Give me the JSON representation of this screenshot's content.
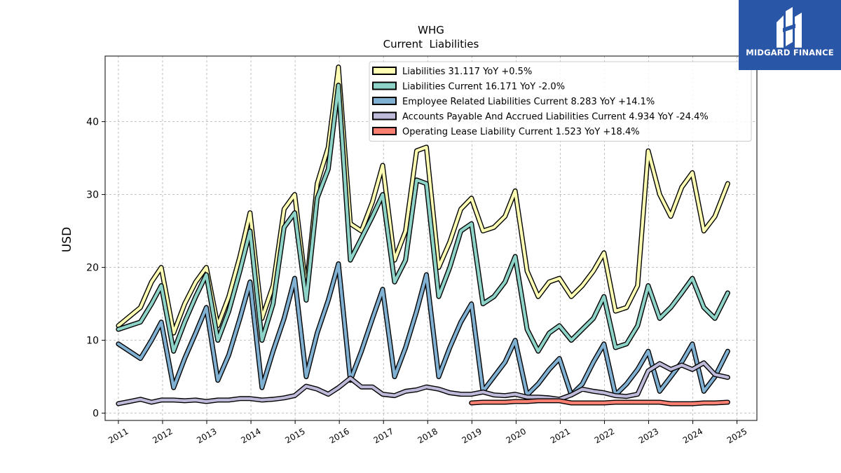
{
  "brand": {
    "name": "MIDGARD FINANCE",
    "bg_color": "#2a56a8",
    "icon": "midgard-logo-icon"
  },
  "chart_data": {
    "type": "line",
    "title": "WHG",
    "subtitle": "Current  Liabilities",
    "ylabel": "USD",
    "xlabel": "",
    "xlim": [
      2010.7,
      2025.45
    ],
    "ylim": [
      -1,
      49
    ],
    "x_ticks": [
      2011,
      2012,
      2013,
      2014,
      2015,
      2016,
      2017,
      2018,
      2019,
      2020,
      2021,
      2022,
      2023,
      2024,
      2025
    ],
    "x_tick_labels": [
      "2011",
      "2012",
      "2013",
      "2014",
      "2015",
      "2016",
      "2017",
      "2018",
      "2019",
      "2020",
      "2021",
      "2022",
      "2023",
      "2024",
      "2025"
    ],
    "y_ticks": [
      0,
      10,
      20,
      30,
      40
    ],
    "y_tick_labels": [
      "0",
      "10",
      "20",
      "30",
      "40"
    ],
    "grid": true,
    "legend_position": "top-right",
    "series": [
      {
        "name": "Liabilities",
        "legend": "Liabilities  31.117 YoY +0.5%",
        "color": "#ffffb3",
        "x": [
          2011.0,
          2011.5,
          2011.75,
          2011.97,
          2012.25,
          2012.5,
          2012.75,
          2012.99,
          2013.25,
          2013.5,
          2013.75,
          2013.98,
          2014.25,
          2014.5,
          2014.75,
          2014.99,
          2015.25,
          2015.5,
          2015.75,
          2015.98,
          2016.25,
          2016.5,
          2016.75,
          2016.98,
          2017.25,
          2017.5,
          2017.75,
          2017.97,
          2018.25,
          2018.5,
          2018.75,
          2018.99,
          2019.25,
          2019.5,
          2019.75,
          2019.98,
          2020.25,
          2020.5,
          2020.75,
          2020.98,
          2021.25,
          2021.5,
          2021.75,
          2021.99,
          2022.25,
          2022.5,
          2022.75,
          2022.99,
          2023.25,
          2023.5,
          2023.75,
          2023.99,
          2024.25,
          2024.5,
          2024.79
        ],
        "y": [
          12.0,
          14.5,
          18.0,
          20.0,
          11.0,
          15.0,
          18.0,
          20.0,
          12.0,
          16.0,
          21.5,
          27.5,
          13.0,
          17.5,
          28.0,
          30.0,
          17.0,
          31.5,
          36.5,
          47.5,
          26.0,
          25.0,
          29.0,
          34.0,
          21.0,
          25.0,
          36.0,
          36.5,
          20.0,
          23.5,
          28.0,
          29.5,
          25.0,
          25.5,
          27.0,
          30.5,
          19.5,
          16.0,
          18.0,
          18.5,
          16.0,
          17.5,
          19.5,
          22.0,
          14.0,
          14.5,
          17.5,
          36.0,
          30.0,
          27.0,
          31.0,
          33.0,
          25.0,
          27.0,
          31.5
        ]
      },
      {
        "name": "Liabilities Current",
        "legend": "Liabilities Current  16.171 YoY -2.0%",
        "color": "#8dd3c7",
        "x": [
          2011.0,
          2011.5,
          2011.75,
          2011.97,
          2012.25,
          2012.5,
          2012.75,
          2012.99,
          2013.25,
          2013.5,
          2013.75,
          2013.98,
          2014.25,
          2014.5,
          2014.75,
          2014.99,
          2015.25,
          2015.5,
          2015.75,
          2015.98,
          2016.25,
          2016.5,
          2016.75,
          2016.98,
          2017.25,
          2017.5,
          2017.75,
          2017.97,
          2018.25,
          2018.5,
          2018.75,
          2018.99,
          2019.25,
          2019.5,
          2019.75,
          2019.98,
          2020.25,
          2020.5,
          2020.75,
          2020.98,
          2021.25,
          2021.5,
          2021.75,
          2021.99,
          2022.25,
          2022.5,
          2022.75,
          2022.99,
          2023.25,
          2023.5,
          2023.75,
          2023.99,
          2024.25,
          2024.5,
          2024.79
        ],
        "y": [
          11.5,
          12.5,
          15.0,
          17.5,
          8.5,
          12.5,
          16.0,
          19.0,
          10.0,
          14.0,
          19.5,
          25.0,
          10.0,
          15.0,
          25.5,
          27.5,
          15.5,
          29.5,
          33.5,
          45.0,
          21.0,
          24.0,
          27.0,
          30.0,
          18.0,
          21.0,
          32.0,
          31.5,
          16.0,
          20.0,
          25.0,
          26.0,
          15.0,
          16.0,
          18.0,
          21.5,
          11.5,
          8.5,
          11.0,
          12.0,
          10.0,
          11.5,
          13.0,
          16.0,
          9.0,
          9.5,
          12.0,
          17.5,
          13.0,
          14.5,
          16.5,
          18.5,
          14.5,
          13.0,
          16.5
        ]
      },
      {
        "name": "Employee Related Liabilities Current",
        "legend": "Employee Related Liabilities Current  8.283 YoY +14.1%",
        "color": "#80b1d3",
        "x": [
          2011.0,
          2011.5,
          2011.75,
          2011.97,
          2012.25,
          2012.5,
          2012.75,
          2012.99,
          2013.25,
          2013.5,
          2013.75,
          2013.98,
          2014.25,
          2014.5,
          2014.75,
          2014.99,
          2015.25,
          2015.5,
          2015.75,
          2015.98,
          2016.25,
          2016.5,
          2016.75,
          2016.98,
          2017.25,
          2017.5,
          2017.75,
          2017.97,
          2018.25,
          2018.5,
          2018.75,
          2018.99,
          2019.25,
          2019.5,
          2019.75,
          2019.98,
          2020.25,
          2020.5,
          2020.75,
          2020.98,
          2021.25,
          2021.5,
          2021.75,
          2021.99,
          2022.25,
          2022.5,
          2022.75,
          2022.99,
          2023.25,
          2023.5,
          2023.75,
          2023.99,
          2024.25,
          2024.5,
          2024.79
        ],
        "y": [
          9.5,
          7.5,
          10.0,
          12.5,
          3.5,
          7.5,
          11.0,
          14.5,
          4.5,
          8.0,
          13.0,
          18.0,
          3.5,
          8.5,
          13.0,
          18.5,
          5.0,
          11.0,
          15.5,
          20.5,
          4.5,
          8.5,
          13.0,
          17.0,
          5.0,
          9.0,
          14.0,
          19.0,
          5.0,
          9.0,
          12.5,
          15.0,
          3.0,
          5.0,
          7.0,
          10.0,
          2.5,
          4.0,
          6.0,
          7.5,
          2.5,
          4.0,
          7.0,
          9.5,
          2.5,
          4.0,
          6.0,
          8.5,
          3.0,
          5.0,
          7.0,
          9.5,
          3.0,
          5.0,
          8.5
        ]
      },
      {
        "name": "Accounts Payable And Accrued Liabilities Current",
        "legend": "Accounts Payable And Accrued Liabilities Current  4.934 YoY -24.4%",
        "color": "#bebada",
        "x": [
          2011.0,
          2011.25,
          2011.5,
          2011.75,
          2011.97,
          2012.25,
          2012.5,
          2012.75,
          2012.99,
          2013.25,
          2013.5,
          2013.75,
          2013.98,
          2014.25,
          2014.5,
          2014.75,
          2014.99,
          2015.25,
          2015.5,
          2015.75,
          2015.98,
          2016.25,
          2016.5,
          2016.75,
          2016.98,
          2017.25,
          2017.5,
          2017.75,
          2017.97,
          2018.25,
          2018.5,
          2018.75,
          2018.99,
          2019.25,
          2019.5,
          2019.75,
          2019.98,
          2020.25,
          2020.5,
          2020.75,
          2020.98,
          2021.25,
          2021.5,
          2021.75,
          2021.99,
          2022.25,
          2022.5,
          2022.75,
          2022.99,
          2023.25,
          2023.5,
          2023.75,
          2023.99,
          2024.25,
          2024.5,
          2024.79
        ],
        "y": [
          1.3,
          1.6,
          1.9,
          1.5,
          1.8,
          1.8,
          1.7,
          1.8,
          1.6,
          1.8,
          1.8,
          2.0,
          2.0,
          1.8,
          1.9,
          2.1,
          2.4,
          3.7,
          3.3,
          2.6,
          3.5,
          4.8,
          3.6,
          3.6,
          2.6,
          2.4,
          3.0,
          3.2,
          3.6,
          3.3,
          2.8,
          2.6,
          2.6,
          2.9,
          2.5,
          2.4,
          2.6,
          2.2,
          2.2,
          2.1,
          1.9,
          2.5,
          3.3,
          3.0,
          2.8,
          2.4,
          2.3,
          2.6,
          5.8,
          6.8,
          6.0,
          6.6,
          6.0,
          6.9,
          5.3,
          4.9
        ]
      },
      {
        "name": "Operating Lease Liability Current",
        "legend": "Operating Lease Liability Current  1.523 YoY +18.4%",
        "color": "#fb8072",
        "x": [
          2018.99,
          2019.25,
          2019.5,
          2019.75,
          2019.98,
          2020.25,
          2020.5,
          2020.75,
          2020.98,
          2021.25,
          2021.5,
          2021.75,
          2021.99,
          2022.25,
          2022.5,
          2022.75,
          2022.99,
          2023.25,
          2023.5,
          2023.75,
          2023.99,
          2024.25,
          2024.5,
          2024.79
        ],
        "y": [
          1.4,
          1.5,
          1.5,
          1.5,
          1.6,
          1.6,
          1.7,
          1.7,
          1.7,
          1.4,
          1.4,
          1.4,
          1.4,
          1.5,
          1.5,
          1.5,
          1.5,
          1.5,
          1.3,
          1.3,
          1.3,
          1.4,
          1.4,
          1.5
        ]
      }
    ]
  }
}
